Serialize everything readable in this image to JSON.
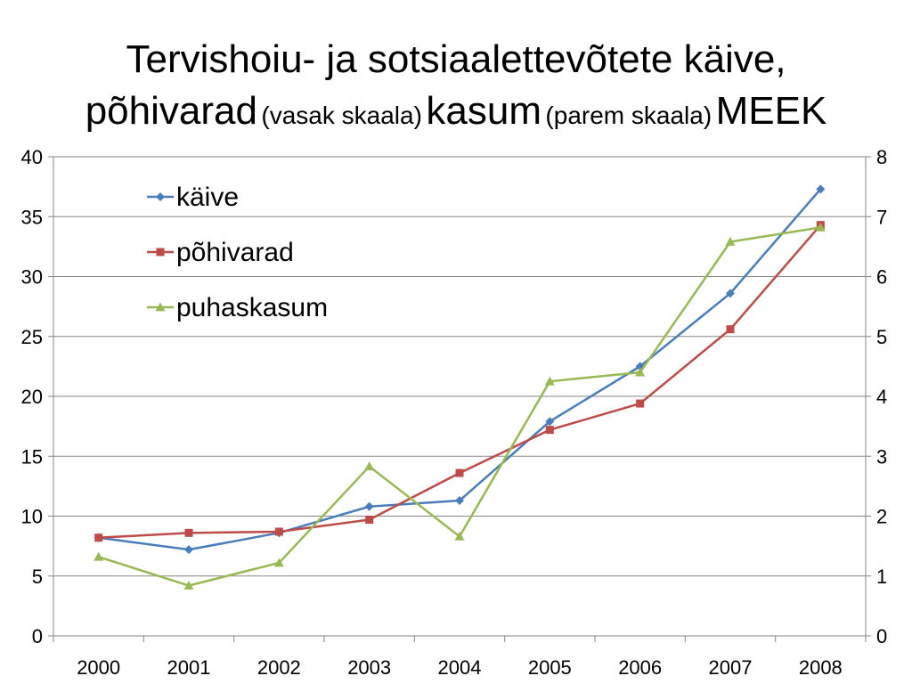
{
  "title": {
    "line1": "Tervishoiu- ja sotsiaalettevõtete käive,",
    "line2_part1": "põhivarad",
    "line2_part2": "(vasak skaala)",
    "line2_part3": "kasum",
    "line2_part4": "(parem skaala)",
    "line2_part5": "MEEK"
  },
  "chart_data": {
    "type": "line",
    "categories": [
      "2000",
      "2001",
      "2002",
      "2003",
      "2004",
      "2005",
      "2006",
      "2007",
      "2008"
    ],
    "series": [
      {
        "name": "käive",
        "axis": "left",
        "color": "#4A7EBB",
        "marker": "diamond",
        "values": [
          8.2,
          7.2,
          8.6,
          10.8,
          11.3,
          17.9,
          22.5,
          28.6,
          37.3
        ]
      },
      {
        "name": "põhivarad",
        "axis": "left",
        "color": "#BE4B48",
        "marker": "square",
        "values": [
          8.2,
          8.6,
          8.7,
          9.7,
          13.6,
          17.2,
          19.4,
          25.6,
          34.3
        ]
      },
      {
        "name": "puhaskasum",
        "axis": "right",
        "color": "#98B954",
        "marker": "triangle",
        "values": [
          1.32,
          0.84,
          1.22,
          2.83,
          1.66,
          4.25,
          4.4,
          6.58,
          6.82
        ]
      }
    ],
    "y_left": {
      "min": 0,
      "max": 40,
      "ticks": [
        "0",
        "5",
        "10",
        "15",
        "20",
        "25",
        "30",
        "35",
        "40"
      ]
    },
    "y_right": {
      "min": 0,
      "max": 8,
      "ticks": [
        "0",
        "1",
        "2",
        "3",
        "4",
        "5",
        "6",
        "7",
        "8"
      ]
    },
    "grid": true,
    "legend_position": "top-left"
  }
}
